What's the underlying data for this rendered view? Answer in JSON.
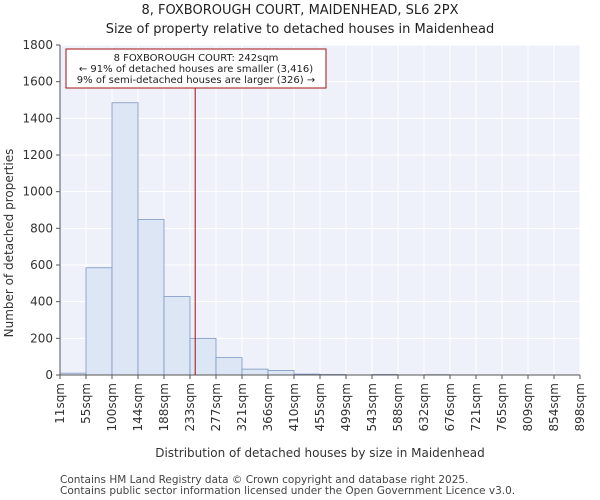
{
  "header": {
    "title": "8, FOXBOROUGH COURT, MAIDENHEAD, SL6 2PX",
    "subtitle": "Size of property relative to detached houses in Maidenhead"
  },
  "annotation": {
    "line1": "8 FOXBOROUGH COURT: 242sqm",
    "line2": "← 91% of detached houses are smaller (3,416)",
    "line3": "9% of semi-detached houses are larger (326) →"
  },
  "footer": {
    "line1": "Contains HM Land Registry data © Crown copyright and database right 2025.",
    "line2": "Contains public sector information licensed under the Open Government Licence v3.0."
  },
  "chart_data": {
    "type": "bar",
    "title": "Size of property relative to detached houses in Maidenhead",
    "xlabel": "Distribution of detached houses by size in Maidenhead",
    "ylabel": "Number of detached properties",
    "ylim": [
      0,
      1800
    ],
    "yticks": [
      0,
      200,
      400,
      600,
      800,
      1000,
      1200,
      1400,
      1600,
      1800
    ],
    "bin_edges_labels": [
      "11sqm",
      "55sqm",
      "100sqm",
      "144sqm",
      "188sqm",
      "233sqm",
      "277sqm",
      "321sqm",
      "366sqm",
      "410sqm",
      "455sqm",
      "499sqm",
      "543sqm",
      "588sqm",
      "632sqm",
      "676sqm",
      "721sqm",
      "765sqm",
      "809sqm",
      "854sqm",
      "898sqm"
    ],
    "values": [
      10,
      585,
      1485,
      848,
      428,
      200,
      95,
      32,
      25,
      5,
      3,
      0,
      3,
      0,
      2,
      0,
      0,
      0,
      0,
      0
    ],
    "marker_value": 242,
    "marker_bin_fraction": 5.2,
    "bar_color": "#dce6f4",
    "bar_edge": "#7f98c4",
    "marker_color": "#a01010",
    "grid": true
  }
}
